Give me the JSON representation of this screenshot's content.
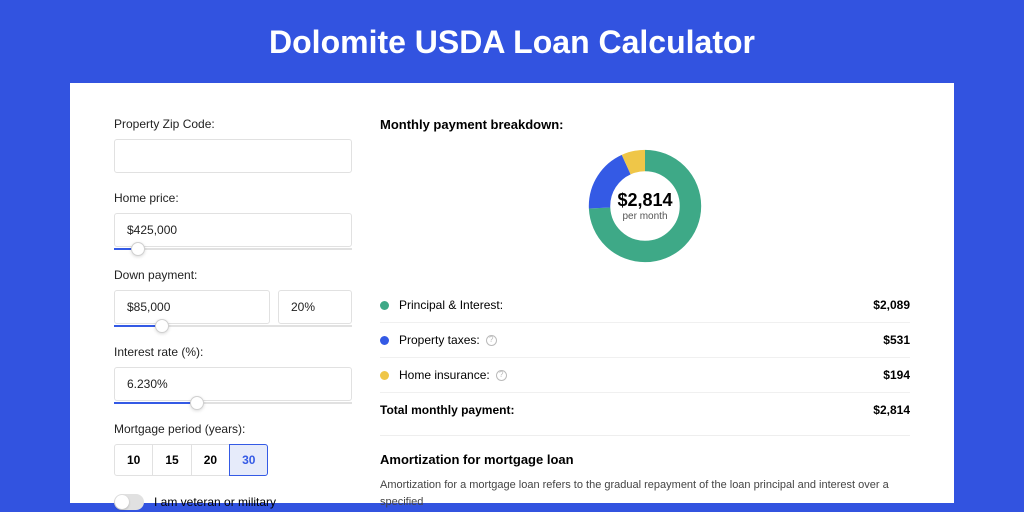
{
  "title": "Dolomite USDA Loan Calculator",
  "colors": {
    "page_bg": "#3253e0",
    "panel_bg": "#ffffff",
    "accent": "#345ae5",
    "principal": "#3ea987",
    "taxes": "#345ae5",
    "insurance": "#efc648",
    "border": "#e1e1e1",
    "text": "#222222"
  },
  "form": {
    "zip": {
      "label": "Property Zip Code:",
      "value": ""
    },
    "price": {
      "label": "Home price:",
      "value": "$425,000",
      "slider_pct": 10
    },
    "down": {
      "label": "Down payment:",
      "amount": "$85,000",
      "percent": "20%",
      "slider_pct": 20
    },
    "rate": {
      "label": "Interest rate (%):",
      "value": "6.230%",
      "slider_pct": 35
    },
    "period": {
      "label": "Mortgage period (years):",
      "options": [
        "10",
        "15",
        "20",
        "30"
      ],
      "selected": "30"
    },
    "veteran": {
      "label": "I am veteran or military",
      "on": false
    }
  },
  "breakdown": {
    "heading": "Monthly payment breakdown:",
    "donut": {
      "type": "pie",
      "center_amount": "$2,814",
      "center_sub": "per month",
      "slices": [
        {
          "key": "principal",
          "value": 2089,
          "color": "#3ea987",
          "deg": 267
        },
        {
          "key": "taxes",
          "value": 531,
          "color": "#345ae5",
          "deg": 68
        },
        {
          "key": "insurance",
          "value": 194,
          "color": "#efc648",
          "deg": 25
        }
      ],
      "inner_ratio": 0.62,
      "background": "#ffffff"
    },
    "legend": [
      {
        "label": "Principal & Interest:",
        "value": "$2,089",
        "color": "#3ea987",
        "info": false
      },
      {
        "label": "Property taxes:",
        "value": "$531",
        "color": "#345ae5",
        "info": true
      },
      {
        "label": "Home insurance:",
        "value": "$194",
        "color": "#efc648",
        "info": true
      }
    ],
    "total": {
      "label": "Total monthly payment:",
      "value": "$2,814"
    }
  },
  "amort": {
    "heading": "Amortization for mortgage loan",
    "text": "Amortization for a mortgage loan refers to the gradual repayment of the loan principal and interest over a specified"
  }
}
